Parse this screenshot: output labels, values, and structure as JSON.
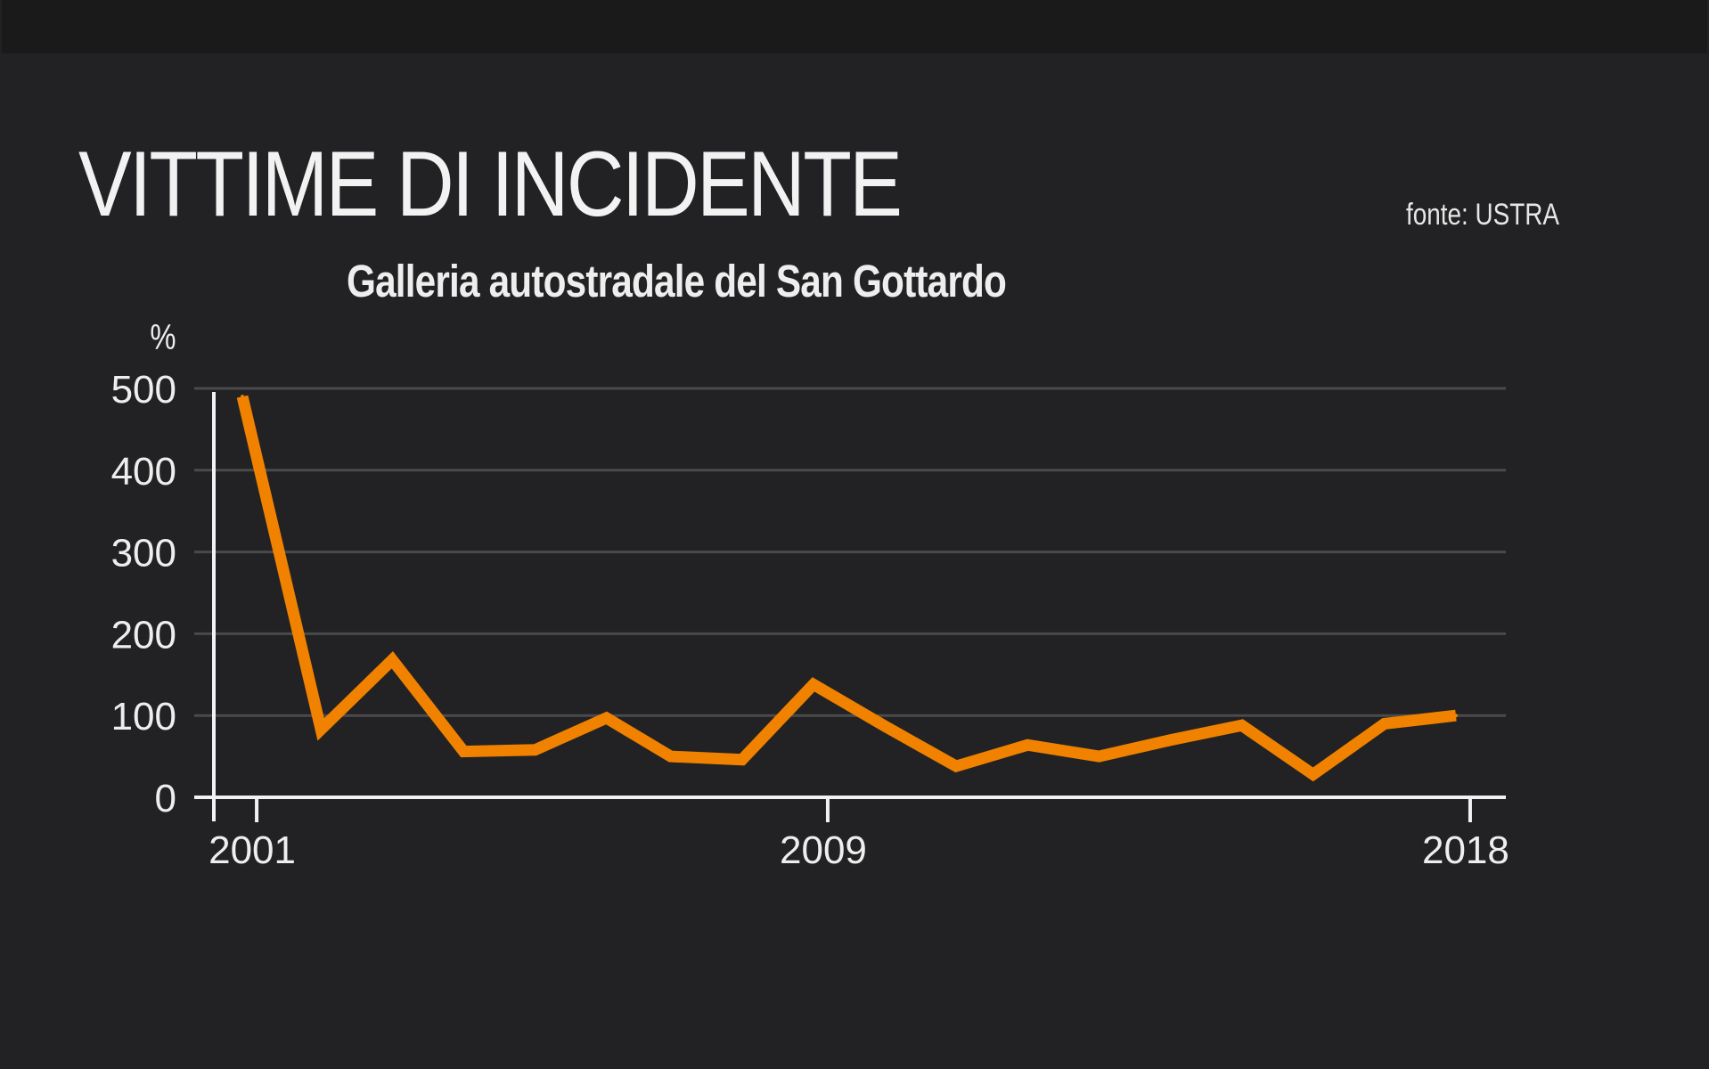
{
  "colors": {
    "background": "#222224",
    "line": "#f08200",
    "grid": "#4a4a4c",
    "axis": "#f2f2f2",
    "text": "#eeeeee"
  },
  "source_note": "fonte: USTRA",
  "chart_data": {
    "type": "line",
    "title": "VITTIME DI INCIDENTE",
    "subtitle": "Galleria autostradale del San Gottardo",
    "ylabel": "%",
    "xlabel": "",
    "ylim": [
      0,
      500
    ],
    "xlim": [
      2000.4,
      2018.5
    ],
    "y_ticks": [
      0,
      100,
      200,
      300,
      400,
      500
    ],
    "x_ticks": [
      2001,
      2009,
      2018
    ],
    "grid": true,
    "legend": "none",
    "series": [
      {
        "x": [
          2000.8,
          2001.9,
          2002.9,
          2003.9,
          2004.9,
          2005.9,
          2006.8,
          2007.8,
          2008.8,
          2009.8,
          2010.8,
          2011.8,
          2012.8,
          2013.8,
          2014.8,
          2015.8,
          2016.8,
          2017.4,
          2017.8
        ],
        "values": [
          490,
          83,
          168,
          56,
          58,
          97,
          50,
          46,
          138,
          87,
          38,
          64,
          50,
          70,
          88,
          28,
          90,
          96,
          100
        ]
      }
    ]
  }
}
